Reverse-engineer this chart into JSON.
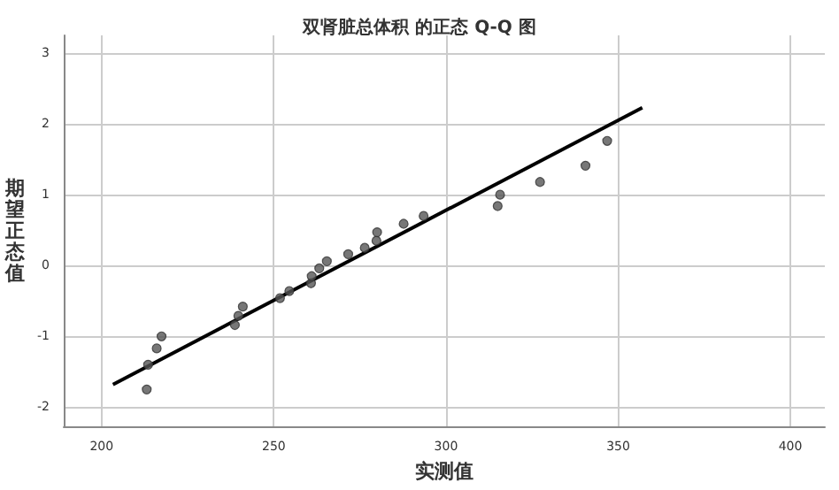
{
  "chart_data": {
    "type": "scatter",
    "title": "双肾脏总体积 的正态 Q-Q 图",
    "xlabel": "实测值",
    "ylabel": "期望正态值",
    "xlim": [
      189,
      410
    ],
    "ylim": [
      -2.27,
      3.25
    ],
    "xticks": [
      200,
      250,
      300,
      350,
      400
    ],
    "yticks": [
      -2,
      -1,
      0,
      1,
      2,
      3
    ],
    "grid": true,
    "marker": "circle",
    "series": [
      {
        "color": "#555555",
        "x": [
          213.1,
          213.5,
          216,
          217.4,
          238.7,
          239.7,
          241,
          251.8,
          254.5,
          260.8,
          261,
          263.2,
          265.4,
          271.6,
          276.4,
          279.8,
          280,
          287.7,
          293.5,
          315,
          315.7,
          327.3,
          340.5,
          346.8
        ],
        "values": [
          -1.75,
          -1.4,
          -1.17,
          -1.0,
          -0.84,
          -0.71,
          -0.58,
          -0.46,
          -0.36,
          -0.25,
          -0.15,
          -0.04,
          0.06,
          0.16,
          0.25,
          0.35,
          0.47,
          0.59,
          0.7,
          0.84,
          1.0,
          1.18,
          1.41,
          1.76
        ]
      },
      {
        "type": "line",
        "color": "#000000",
        "x": [
          203.3,
          357
        ],
        "values": [
          -1.68,
          2.23
        ],
        "line_style": "solid",
        "marker": "none"
      }
    ]
  }
}
